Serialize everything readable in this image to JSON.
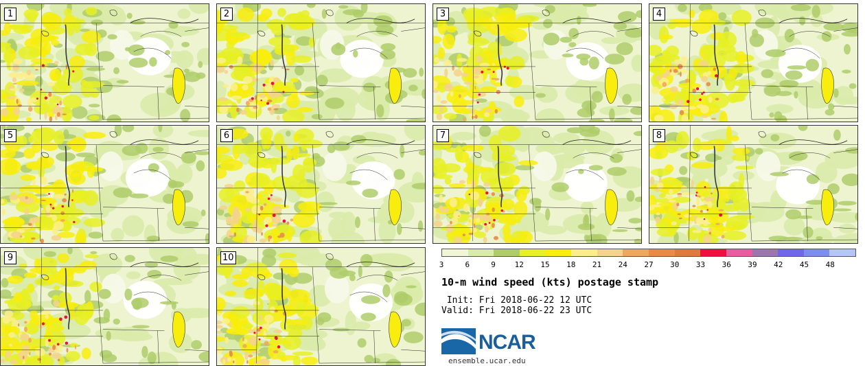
{
  "panels": [
    {
      "number": "1"
    },
    {
      "number": "2"
    },
    {
      "number": "3"
    },
    {
      "number": "4"
    },
    {
      "number": "5"
    },
    {
      "number": "6"
    },
    {
      "number": "7"
    },
    {
      "number": "8"
    },
    {
      "number": "9"
    },
    {
      "number": "10"
    }
  ],
  "colorbar": {
    "colors": [
      "#f1f6d6",
      "#d9ebaa",
      "#aecd6a",
      "#e6f025",
      "#f8ed0c",
      "#fbee8a",
      "#f4d48c",
      "#efa75d",
      "#e98b46",
      "#dd7a3c",
      "#ef0e3e",
      "#e95da0",
      "#9c77ae",
      "#7067e8",
      "#7b8ef0",
      "#b4c6f7"
    ],
    "labels": [
      "3",
      "6",
      "9",
      "12",
      "15",
      "18",
      "21",
      "24",
      "27",
      "30",
      "33",
      "36",
      "39",
      "42",
      "45",
      "48"
    ]
  },
  "title": "10-m wind speed (kts) postage stamp",
  "init_line": " Init: Fri 2018-06-22 12 UTC",
  "valid_line": "Valid: Fri 2018-06-22 23 UTC",
  "logo": {
    "text": "NCAR",
    "url": "ensemble.ucar.edu",
    "color": "#1a5e9a"
  }
}
